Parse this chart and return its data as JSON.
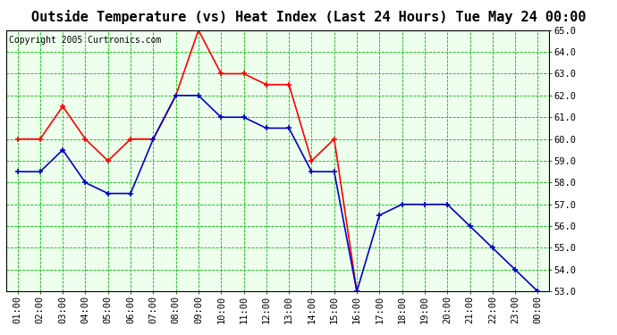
{
  "title": "Outside Temperature (vs) Heat Index (Last 24 Hours) Tue May 24 00:00",
  "copyright": "Copyright 2005 Curtronics.com",
  "x_labels": [
    "01:00",
    "02:00",
    "03:00",
    "04:00",
    "05:00",
    "06:00",
    "07:00",
    "08:00",
    "09:00",
    "10:00",
    "11:00",
    "12:00",
    "13:00",
    "14:00",
    "15:00",
    "16:00",
    "17:00",
    "18:00",
    "19:00",
    "20:00",
    "21:00",
    "22:00",
    "23:00",
    "00:00"
  ],
  "red_data": [
    60.0,
    60.0,
    61.5,
    60.0,
    59.0,
    60.0,
    60.0,
    62.0,
    65.0,
    63.0,
    63.0,
    62.5,
    62.5,
    59.0,
    60.0,
    53.0,
    null,
    null,
    null,
    null,
    null,
    null,
    null,
    null
  ],
  "blue_data": [
    58.5,
    58.5,
    59.5,
    58.0,
    57.5,
    57.5,
    60.0,
    62.0,
    62.0,
    61.0,
    61.0,
    60.5,
    60.5,
    58.5,
    58.5,
    53.0,
    56.5,
    57.0,
    57.0,
    57.0,
    56.0,
    55.0,
    54.0,
    53.0
  ],
  "red_color": "#ff0000",
  "blue_color": "#0000cc",
  "bg_color": "#ffffff",
  "plot_bg_color": "#eeffee",
  "grid_color": "#00bb00",
  "border_color": "#000000",
  "ylim": [
    53.0,
    65.0
  ],
  "yticks": [
    53.0,
    54.0,
    55.0,
    56.0,
    57.0,
    58.0,
    59.0,
    60.0,
    61.0,
    62.0,
    63.0,
    64.0,
    65.0
  ],
  "title_fontsize": 11,
  "copyright_fontsize": 7,
  "tick_fontsize": 7.5,
  "marker": "+",
  "markersize": 5,
  "linewidth": 1.2
}
